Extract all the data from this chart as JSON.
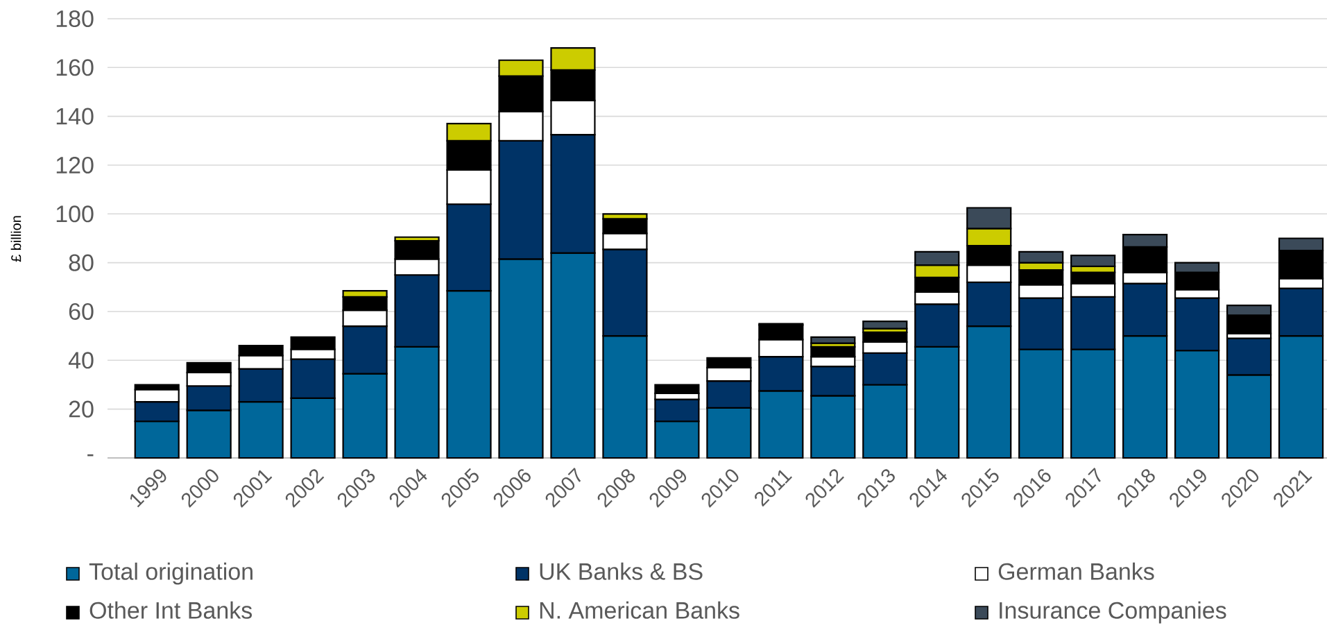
{
  "chart_data": {
    "type": "bar",
    "stacked": true,
    "ylabel": "£ billion",
    "categories": [
      "1999",
      "2000",
      "2001",
      "2002",
      "2003",
      "2004",
      "2005",
      "2006",
      "2007",
      "2008",
      "2009",
      "2010",
      "2011",
      "2012",
      "2013",
      "2014",
      "2015",
      "2016",
      "2017",
      "2018",
      "2019",
      "2020",
      "2021"
    ],
    "series": [
      {
        "name": "Total origination",
        "color": "#00679a",
        "values": [
          15,
          19.5,
          23,
          24.5,
          34.5,
          45.5,
          68.5,
          81.5,
          84,
          50,
          15,
          20.5,
          27.5,
          25.5,
          30,
          45.5,
          54,
          44.5,
          44.5,
          50,
          44,
          34,
          50
        ]
      },
      {
        "name": "UK Banks & BS",
        "color": "#003366",
        "values": [
          8,
          10,
          13.5,
          16,
          19.5,
          29.5,
          35.5,
          48.5,
          48.5,
          35.5,
          9,
          11,
          14,
          12,
          13,
          17.5,
          18,
          21,
          21.5,
          21.5,
          21.5,
          15,
          19.5
        ]
      },
      {
        "name": "German Banks",
        "color": "#ffffff",
        "values": [
          5,
          5.5,
          5.5,
          4,
          6.5,
          6.5,
          14,
          12,
          14,
          6.5,
          2.5,
          5.5,
          7,
          4,
          4.5,
          5,
          7,
          5.5,
          5.5,
          4.5,
          3.5,
          2,
          4
        ]
      },
      {
        "name": "Other Int Banks",
        "color": "#000000",
        "values": [
          2,
          4,
          4,
          5,
          5.5,
          7.5,
          12,
          14.5,
          12.5,
          6,
          3.5,
          4,
          6,
          4,
          4,
          6,
          8,
          6,
          4.5,
          10.5,
          7,
          7.5,
          11.5
        ]
      },
      {
        "name": "N. American Banks",
        "color": "#cccc00",
        "values": [
          null,
          null,
          null,
          null,
          2.5,
          1.5,
          7,
          6.5,
          9,
          2,
          null,
          null,
          0.5,
          1.5,
          1.5,
          5,
          7,
          3,
          2.5,
          null,
          null,
          null,
          null
        ]
      },
      {
        "name": "Insurance Companies",
        "color": "#3b4a59",
        "values": [
          null,
          null,
          null,
          null,
          null,
          null,
          null,
          null,
          null,
          null,
          null,
          null,
          null,
          2.5,
          3,
          5.5,
          8.5,
          4.5,
          4.5,
          5,
          4,
          4,
          5
        ]
      }
    ],
    "ylim": [
      0,
      180
    ],
    "yticks": [
      {
        "value": 0,
        "label": "-"
      },
      20,
      40,
      60,
      80,
      100,
      120,
      140,
      160,
      180
    ],
    "grid": "y",
    "legend": "bottom"
  }
}
